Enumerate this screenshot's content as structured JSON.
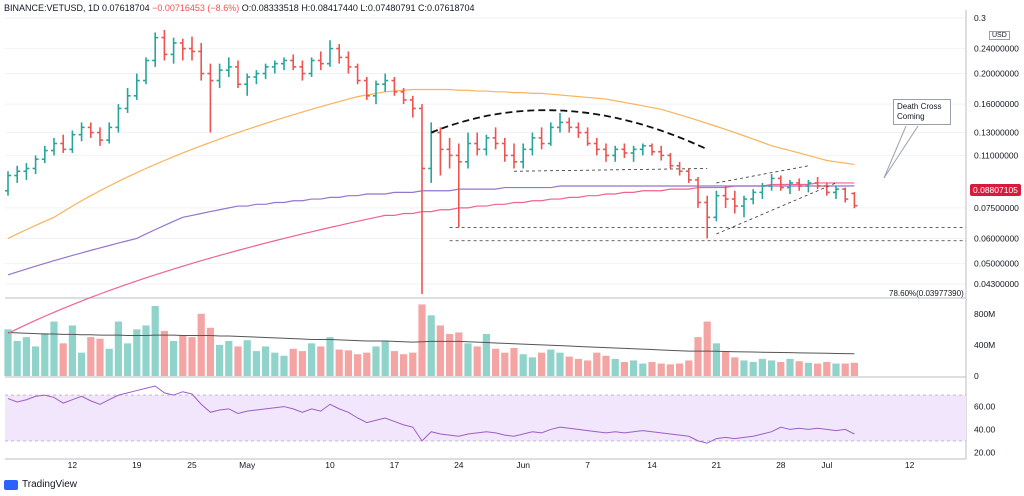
{
  "header": {
    "symbol": "BINANCE:VETUSD, 1D",
    "last": "0.07618704",
    "change": "−0.00716453 (−8.6%)",
    "o_label": "O:",
    "o": "0.08333518",
    "h_label": "H:",
    "h": "0.08417440",
    "l_label": "L:",
    "l": "0.07480791",
    "c_label": "C:",
    "c": "0.07618704"
  },
  "brand": "TradingView",
  "annotation": {
    "line1": "Death Cross",
    "line2": "Coming"
  },
  "currency_badge": "USD",
  "price_tag": "0.08807105",
  "fib_label": "78.60%(0.03977390)",
  "colors": {
    "up": "#26a69a",
    "down": "#ef5350",
    "ma50": "#f9b35a",
    "ma200": "#f06292",
    "ma_purple": "#9575cd",
    "volume_ma": "#555555",
    "rsi": "#9c5fc4",
    "rsi_band": "#f1e6fb"
  },
  "chart_data": [
    {
      "type": "candlestick",
      "price_axis": {
        "scale": "log",
        "range": [
          0.04,
          0.3
        ],
        "ticks": [
          {
            "v": 0.3,
            "label": "0.3"
          },
          {
            "v": 0.24,
            "label": "0.24000000"
          },
          {
            "v": 0.2,
            "label": "0.20000000"
          },
          {
            "v": 0.16,
            "label": "0.16000000"
          },
          {
            "v": 0.13,
            "label": "0.13000000"
          },
          {
            "v": 0.11,
            "label": "0.11000000"
          },
          {
            "v": 0.075,
            "label": "0.07500000"
          },
          {
            "v": 0.06,
            "label": "0.06000000"
          },
          {
            "v": 0.05,
            "label": "0.05000000"
          },
          {
            "v": 0.043,
            "label": "0.04300000"
          }
        ]
      },
      "x_ticks": [
        "12",
        "19",
        "25",
        "May",
        "10",
        "17",
        "24",
        "Jun",
        "7",
        "14",
        "21",
        "28",
        "Jul",
        "12"
      ],
      "candles": [
        [
          0.085,
          0.098,
          0.082,
          0.095
        ],
        [
          0.095,
          0.102,
          0.09,
          0.098
        ],
        [
          0.098,
          0.104,
          0.092,
          0.1
        ],
        [
          0.1,
          0.11,
          0.096,
          0.107
        ],
        [
          0.107,
          0.118,
          0.104,
          0.114
        ],
        [
          0.114,
          0.125,
          0.11,
          0.12
        ],
        [
          0.12,
          0.128,
          0.112,
          0.115
        ],
        [
          0.115,
          0.132,
          0.112,
          0.128
        ],
        [
          0.128,
          0.14,
          0.122,
          0.135
        ],
        [
          0.135,
          0.14,
          0.125,
          0.13
        ],
        [
          0.13,
          0.135,
          0.118,
          0.123
        ],
        [
          0.123,
          0.14,
          0.12,
          0.135
        ],
        [
          0.135,
          0.16,
          0.13,
          0.155
        ],
        [
          0.155,
          0.18,
          0.15,
          0.17
        ],
        [
          0.17,
          0.2,
          0.165,
          0.19
        ],
        [
          0.19,
          0.225,
          0.185,
          0.22
        ],
        [
          0.22,
          0.27,
          0.21,
          0.26
        ],
        [
          0.26,
          0.275,
          0.22,
          0.23
        ],
        [
          0.23,
          0.26,
          0.215,
          0.25
        ],
        [
          0.25,
          0.258,
          0.22,
          0.24
        ],
        [
          0.24,
          0.262,
          0.22,
          0.235
        ],
        [
          0.235,
          0.25,
          0.19,
          0.2
        ],
        [
          0.2,
          0.215,
          0.13,
          0.19
        ],
        [
          0.19,
          0.215,
          0.18,
          0.205
        ],
        [
          0.205,
          0.225,
          0.195,
          0.21
        ],
        [
          0.21,
          0.22,
          0.18,
          0.185
        ],
        [
          0.185,
          0.2,
          0.17,
          0.195
        ],
        [
          0.195,
          0.205,
          0.185,
          0.2
        ],
        [
          0.2,
          0.215,
          0.192,
          0.21
        ],
        [
          0.21,
          0.22,
          0.2,
          0.215
        ],
        [
          0.215,
          0.225,
          0.205,
          0.22
        ],
        [
          0.22,
          0.23,
          0.205,
          0.21
        ],
        [
          0.21,
          0.22,
          0.19,
          0.2
        ],
        [
          0.2,
          0.225,
          0.195,
          0.22
        ],
        [
          0.22,
          0.235,
          0.205,
          0.215
        ],
        [
          0.215,
          0.255,
          0.21,
          0.24
        ],
        [
          0.24,
          0.248,
          0.215,
          0.225
        ],
        [
          0.225,
          0.235,
          0.2,
          0.21
        ],
        [
          0.21,
          0.215,
          0.185,
          0.19
        ],
        [
          0.19,
          0.195,
          0.165,
          0.17
        ],
        [
          0.17,
          0.19,
          0.16,
          0.185
        ],
        [
          0.185,
          0.2,
          0.175,
          0.19
        ],
        [
          0.19,
          0.195,
          0.17,
          0.175
        ],
        [
          0.175,
          0.18,
          0.16,
          0.165
        ],
        [
          0.165,
          0.17,
          0.145,
          0.155
        ],
        [
          0.155,
          0.16,
          0.04,
          0.1
        ],
        [
          0.1,
          0.14,
          0.09,
          0.13
        ],
        [
          0.13,
          0.135,
          0.095,
          0.115
        ],
        [
          0.115,
          0.125,
          0.1,
          0.11
        ],
        [
          0.11,
          0.12,
          0.065,
          0.105
        ],
        [
          0.105,
          0.13,
          0.1,
          0.12
        ],
        [
          0.12,
          0.13,
          0.11,
          0.115
        ],
        [
          0.115,
          0.128,
          0.11,
          0.125
        ],
        [
          0.125,
          0.135,
          0.115,
          0.12
        ],
        [
          0.12,
          0.125,
          0.105,
          0.11
        ],
        [
          0.11,
          0.12,
          0.1,
          0.105
        ],
        [
          0.105,
          0.12,
          0.1,
          0.115
        ],
        [
          0.115,
          0.13,
          0.11,
          0.125
        ],
        [
          0.125,
          0.135,
          0.115,
          0.12
        ],
        [
          0.12,
          0.14,
          0.118,
          0.135
        ],
        [
          0.135,
          0.15,
          0.13,
          0.14
        ],
        [
          0.14,
          0.145,
          0.13,
          0.135
        ],
        [
          0.135,
          0.14,
          0.125,
          0.13
        ],
        [
          0.13,
          0.135,
          0.118,
          0.12
        ],
        [
          0.12,
          0.125,
          0.11,
          0.115
        ],
        [
          0.115,
          0.12,
          0.105,
          0.11
        ],
        [
          0.11,
          0.118,
          0.105,
          0.115
        ],
        [
          0.115,
          0.12,
          0.108,
          0.112
        ],
        [
          0.112,
          0.118,
          0.105,
          0.115
        ],
        [
          0.115,
          0.12,
          0.11,
          0.118
        ],
        [
          0.118,
          0.12,
          0.11,
          0.113
        ],
        [
          0.113,
          0.118,
          0.106,
          0.11
        ],
        [
          0.11,
          0.112,
          0.1,
          0.102
        ],
        [
          0.102,
          0.105,
          0.095,
          0.098
        ],
        [
          0.098,
          0.1,
          0.09,
          0.092
        ],
        [
          0.092,
          0.094,
          0.075,
          0.078
        ],
        [
          0.078,
          0.082,
          0.06,
          0.07
        ],
        [
          0.07,
          0.085,
          0.068,
          0.082
        ],
        [
          0.082,
          0.088,
          0.075,
          0.08
        ],
        [
          0.08,
          0.085,
          0.072,
          0.076
        ],
        [
          0.076,
          0.082,
          0.07,
          0.08
        ],
        [
          0.08,
          0.086,
          0.077,
          0.084
        ],
        [
          0.084,
          0.09,
          0.08,
          0.088
        ],
        [
          0.088,
          0.096,
          0.085,
          0.093
        ],
        [
          0.093,
          0.095,
          0.085,
          0.087
        ],
        [
          0.087,
          0.092,
          0.083,
          0.09
        ],
        [
          0.09,
          0.093,
          0.085,
          0.088
        ],
        [
          0.088,
          0.092,
          0.084,
          0.09
        ],
        [
          0.09,
          0.094,
          0.086,
          0.088
        ],
        [
          0.088,
          0.09,
          0.082,
          0.084
        ],
        [
          0.084,
          0.088,
          0.08,
          0.086
        ],
        [
          0.086,
          0.087,
          0.078,
          0.08
        ],
        [
          0.0833,
          0.0842,
          0.0748,
          0.0762
        ]
      ],
      "moving_averages": {
        "ma50": [
          0.06,
          0.062,
          0.064,
          0.066,
          0.068,
          0.07,
          0.073,
          0.076,
          0.079,
          0.082,
          0.085,
          0.088,
          0.091,
          0.094,
          0.097,
          0.1,
          0.103,
          0.106,
          0.109,
          0.112,
          0.115,
          0.118,
          0.121,
          0.124,
          0.127,
          0.13,
          0.133,
          0.136,
          0.139,
          0.142,
          0.145,
          0.148,
          0.151,
          0.154,
          0.157,
          0.16,
          0.163,
          0.166,
          0.169,
          0.171,
          0.173,
          0.175,
          0.176,
          0.177,
          0.178,
          0.178,
          0.178,
          0.178,
          0.178,
          0.177,
          0.177,
          0.176,
          0.176,
          0.175,
          0.175,
          0.174,
          0.174,
          0.173,
          0.173,
          0.172,
          0.171,
          0.17,
          0.169,
          0.168,
          0.167,
          0.166,
          0.164,
          0.162,
          0.16,
          0.158,
          0.156,
          0.154,
          0.151,
          0.148,
          0.145,
          0.142,
          0.139,
          0.136,
          0.133,
          0.13,
          0.127,
          0.124,
          0.121,
          0.118,
          0.116,
          0.114,
          0.112,
          0.11,
          0.108,
          0.106,
          0.105,
          0.104,
          0.103
        ],
        "ma_purple": [
          0.046,
          0.047,
          0.048,
          0.049,
          0.05,
          0.051,
          0.052,
          0.053,
          0.054,
          0.055,
          0.056,
          0.057,
          0.058,
          0.059,
          0.06,
          0.062,
          0.064,
          0.066,
          0.068,
          0.07,
          0.071,
          0.072,
          0.073,
          0.074,
          0.075,
          0.076,
          0.076,
          0.077,
          0.077,
          0.078,
          0.078,
          0.079,
          0.079,
          0.08,
          0.08,
          0.081,
          0.081,
          0.082,
          0.082,
          0.083,
          0.083,
          0.083,
          0.084,
          0.084,
          0.084,
          0.085,
          0.085,
          0.085,
          0.085,
          0.086,
          0.086,
          0.086,
          0.086,
          0.086,
          0.087,
          0.087,
          0.087,
          0.087,
          0.087,
          0.087,
          0.088,
          0.088,
          0.088,
          0.088,
          0.088,
          0.088,
          0.088,
          0.088,
          0.088,
          0.088,
          0.088,
          0.088,
          0.088,
          0.088,
          0.088,
          0.088,
          0.088,
          0.088,
          0.088,
          0.088,
          0.088,
          0.088,
          0.088,
          0.088,
          0.088,
          0.088,
          0.088,
          0.088,
          0.088,
          0.088,
          0.088,
          0.088,
          0.0881
        ],
        "ma200": [
          0.03,
          0.031,
          0.032,
          0.033,
          0.034,
          0.035,
          0.036,
          0.037,
          0.038,
          0.039,
          0.04,
          0.041,
          0.042,
          0.043,
          0.044,
          0.045,
          0.046,
          0.047,
          0.048,
          0.049,
          0.05,
          0.051,
          0.052,
          0.053,
          0.054,
          0.055,
          0.056,
          0.057,
          0.058,
          0.059,
          0.06,
          0.061,
          0.062,
          0.063,
          0.064,
          0.065,
          0.066,
          0.067,
          0.068,
          0.069,
          0.07,
          0.071,
          0.071,
          0.072,
          0.072,
          0.073,
          0.073,
          0.074,
          0.074,
          0.075,
          0.075,
          0.076,
          0.076,
          0.077,
          0.077,
          0.078,
          0.078,
          0.079,
          0.079,
          0.08,
          0.08,
          0.081,
          0.081,
          0.082,
          0.082,
          0.083,
          0.083,
          0.084,
          0.084,
          0.085,
          0.085,
          0.085,
          0.086,
          0.086,
          0.086,
          0.087,
          0.087,
          0.087,
          0.087,
          0.088,
          0.088,
          0.088,
          0.088,
          0.089,
          0.089,
          0.089,
          0.089,
          0.089,
          0.09,
          0.09,
          0.09,
          0.09,
          0.09
        ]
      },
      "support_lines": [
        0.065,
        0.059
      ],
      "annotation_text": "Death Cross Coming"
    },
    {
      "type": "bar",
      "name": "volume",
      "axis_ticks": [
        {
          "v": 800,
          "label": "800M"
        },
        {
          "v": 400,
          "label": "400M"
        },
        {
          "v": 0,
          "label": "0"
        }
      ],
      "range": [
        0,
        900
      ],
      "values": [
        600,
        450,
        500,
        380,
        550,
        700,
        420,
        650,
        300,
        500,
        480,
        350,
        700,
        420,
        600,
        650,
        900,
        580,
        450,
        520,
        500,
        800,
        620,
        400,
        450,
        380,
        460,
        320,
        380,
        300,
        260,
        350,
        320,
        420,
        380,
        500,
        340,
        330,
        280,
        300,
        380,
        450,
        320,
        280,
        300,
        920,
        780,
        650,
        540,
        560,
        420,
        380,
        540,
        350,
        300,
        360,
        280,
        240,
        300,
        340,
        300,
        250,
        220,
        200,
        300,
        260,
        220,
        180,
        200,
        160,
        180,
        160,
        150,
        160,
        200,
        500,
        700,
        420,
        320,
        240,
        200,
        180,
        220,
        200,
        180,
        220,
        190,
        170,
        160,
        180,
        160,
        160,
        170
      ],
      "moving_average": [
        560,
        555,
        550,
        545,
        540,
        540,
        535,
        535,
        530,
        530,
        525,
        525,
        525,
        520,
        520,
        520,
        525,
        525,
        525,
        520,
        520,
        520,
        520,
        515,
        515,
        510,
        505,
        500,
        495,
        490,
        485,
        480,
        475,
        470,
        470,
        470,
        465,
        460,
        455,
        450,
        450,
        450,
        445,
        440,
        435,
        440,
        445,
        445,
        445,
        445,
        440,
        435,
        430,
        425,
        420,
        415,
        410,
        405,
        400,
        395,
        390,
        385,
        380,
        375,
        370,
        365,
        360,
        355,
        350,
        345,
        340,
        335,
        330,
        325,
        320,
        320,
        320,
        318,
        315,
        312,
        310,
        308,
        306,
        304,
        302,
        300,
        298,
        296,
        294,
        292,
        290,
        288,
        286
      ]
    },
    {
      "type": "line",
      "name": "RSI",
      "axis_ticks": [
        {
          "v": 60,
          "label": "60.00"
        },
        {
          "v": 40,
          "label": "40.00"
        },
        {
          "v": 20,
          "label": "20.00"
        }
      ],
      "range": [
        15,
        85
      ],
      "band": [
        30,
        70
      ],
      "values": [
        67,
        64,
        66,
        69,
        70,
        68,
        63,
        66,
        69,
        65,
        62,
        66,
        70,
        72,
        74,
        76,
        78,
        72,
        70,
        73,
        71,
        62,
        55,
        57,
        58,
        54,
        56,
        57,
        58,
        59,
        60,
        58,
        55,
        58,
        56,
        62,
        58,
        55,
        50,
        46,
        48,
        50,
        47,
        44,
        42,
        30,
        38,
        36,
        35,
        34,
        36,
        37,
        38,
        37,
        35,
        34,
        36,
        38,
        37,
        40,
        42,
        41,
        40,
        39,
        38,
        37,
        38,
        37,
        38,
        39,
        38,
        37,
        36,
        35,
        34,
        30,
        28,
        32,
        33,
        32,
        33,
        34,
        36,
        38,
        42,
        40,
        41,
        40,
        41,
        40,
        39,
        40,
        36
      ]
    }
  ]
}
